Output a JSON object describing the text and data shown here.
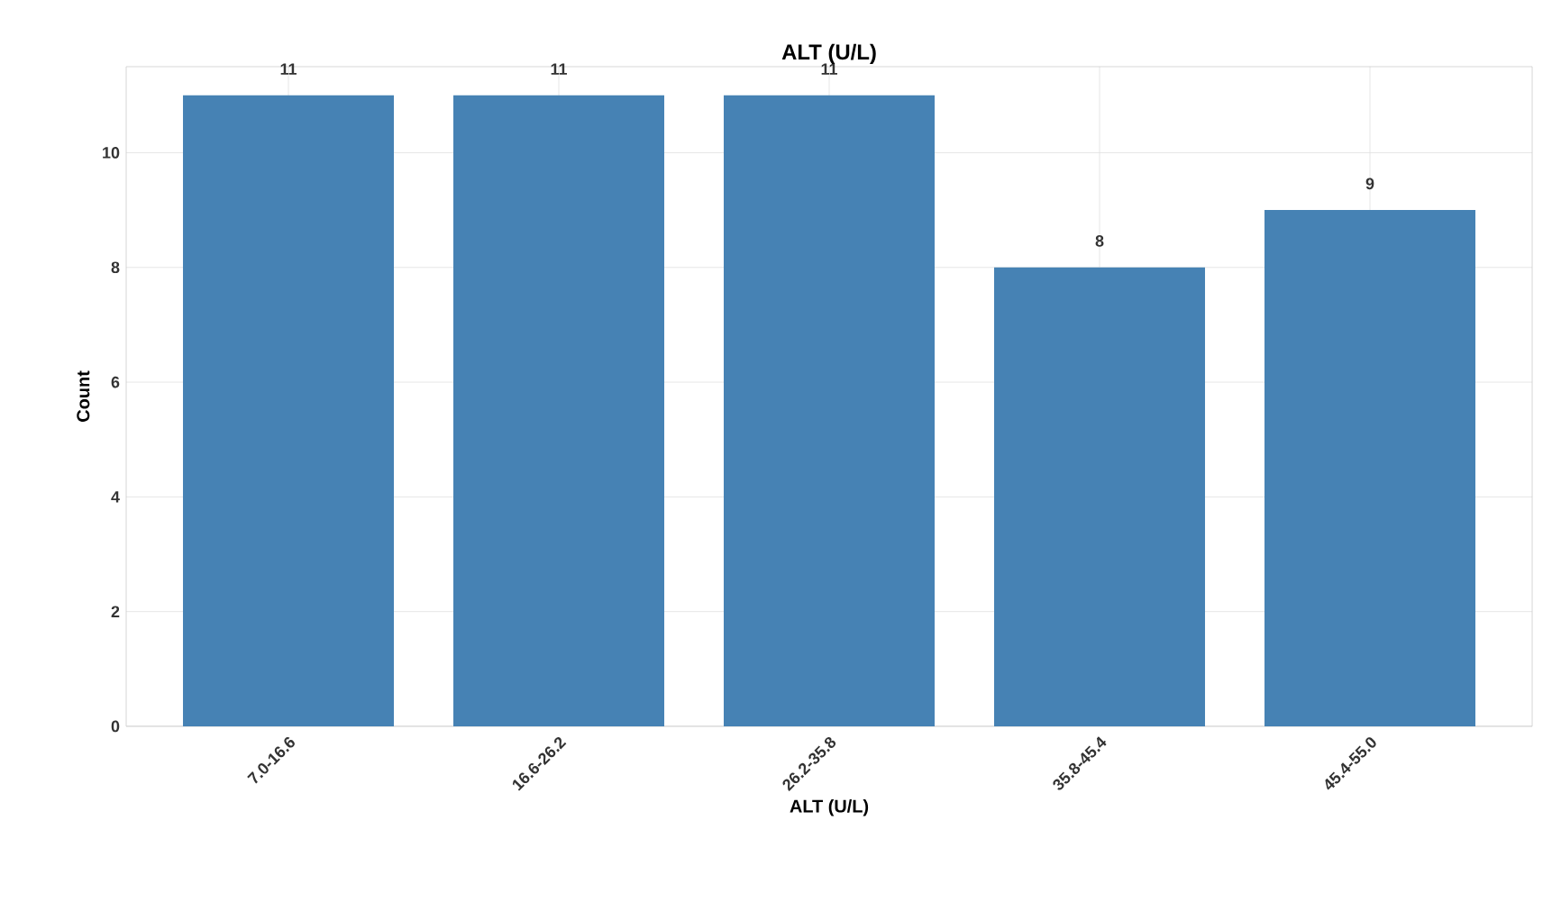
{
  "chart_data": {
    "type": "bar",
    "title": "ALT (U/L)",
    "xlabel": "ALT (U/L)",
    "ylabel": "Count",
    "categories": [
      "7.0-16.6",
      "16.6-26.2",
      "26.2-35.8",
      "35.8-45.4",
      "45.4-55.0"
    ],
    "values": [
      11,
      11,
      11,
      8,
      9
    ],
    "color": "#4682b4",
    "ylim": [
      0,
      11.5
    ],
    "yticks": [
      0,
      2,
      4,
      6,
      8,
      10
    ],
    "grid": true,
    "data_labels": true
  }
}
